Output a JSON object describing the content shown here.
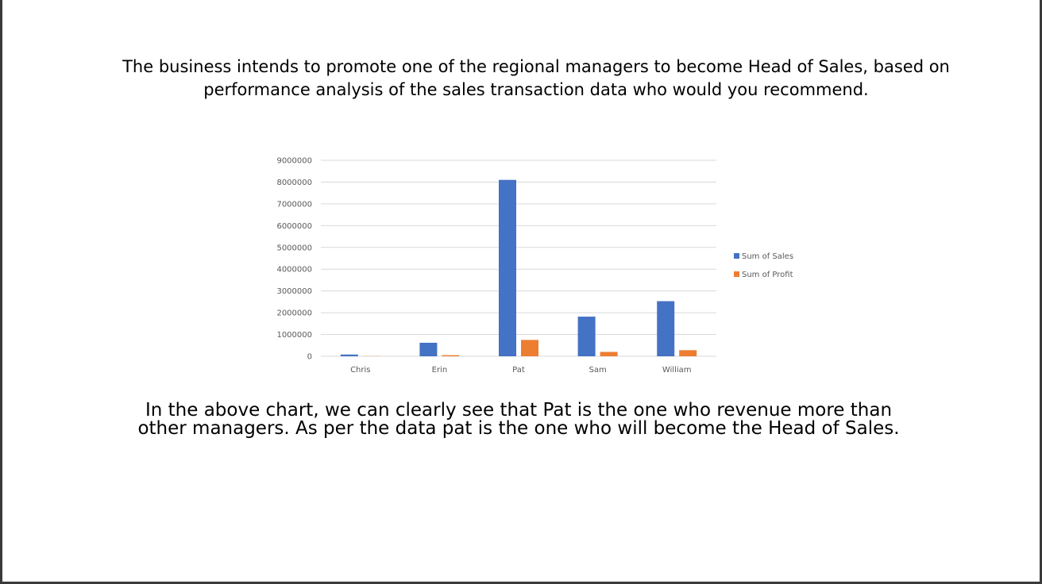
{
  "slide": {
    "heading": "The business intends to promote one of the regional managers to become Head of Sales, based on performance analysis of the sales transaction data who would you recommend.",
    "conclusion_line1": "In the above chart, we can clearly see that Pat is the one who revenue more than",
    "conclusion_line2": "other managers. As per the data pat is the one who will become the Head of Sales."
  },
  "chart_data": {
    "type": "bar",
    "categories": [
      "Chris",
      "Erin",
      "Pat",
      "Sam",
      "William"
    ],
    "series": [
      {
        "name": "Sum of Sales",
        "color": "#4472C4",
        "values": [
          80000,
          620000,
          8100000,
          1820000,
          2530000
        ]
      },
      {
        "name": "Sum of Profit",
        "color": "#ED7D31",
        "values": [
          8000,
          50000,
          750000,
          200000,
          280000
        ]
      }
    ],
    "title": "",
    "xlabel": "",
    "ylabel": "",
    "ylim": [
      0,
      9000000
    ],
    "yticks": [
      "0",
      "1000000",
      "2000000",
      "3000000",
      "4000000",
      "5000000",
      "6000000",
      "7000000",
      "8000000",
      "9000000"
    ],
    "grid": true,
    "legend": "right"
  }
}
